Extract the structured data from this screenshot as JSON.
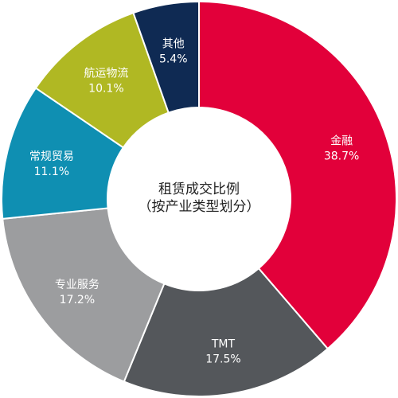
{
  "chart_data": {
    "type": "pie",
    "style": "donut",
    "center_title": "租赁成交比例",
    "center_subtitle": "（按产业类型划分）",
    "slices": [
      {
        "label": "金融",
        "value": 38.7,
        "display": "38.7%",
        "color": "#e2003a"
      },
      {
        "label": "TMT",
        "value": 17.5,
        "display": "17.5%",
        "color": "#54575b"
      },
      {
        "label": "专业服务",
        "value": 17.2,
        "display": "17.2%",
        "color": "#9c9d9f"
      },
      {
        "label": "常规贸易",
        "value": 11.1,
        "display": "11.1%",
        "color": "#0f8fb2"
      },
      {
        "label": "航运物流",
        "value": 10.1,
        "display": "10.1%",
        "color": "#b0b823"
      },
      {
        "label": "其他",
        "value": 5.4,
        "display": "5.4%",
        "color": "#0f2a53"
      }
    ]
  }
}
